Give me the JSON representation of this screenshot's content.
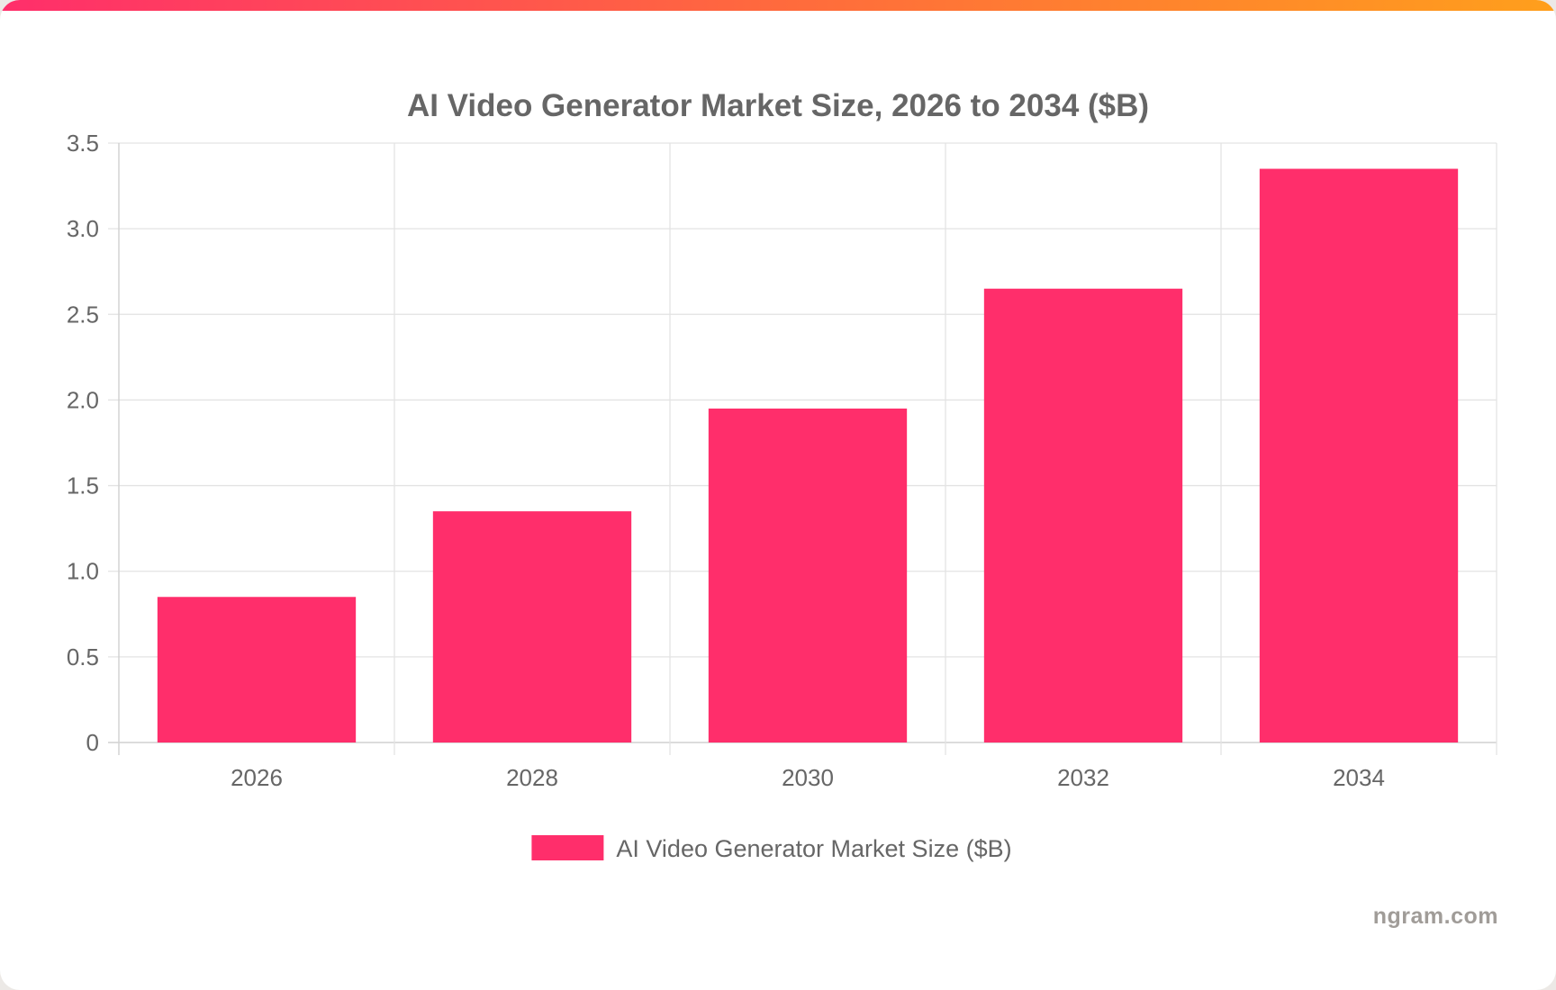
{
  "chart_data": {
    "type": "bar",
    "title": "AI Video Generator Market Size, 2026 to 2034 ($B)",
    "categories": [
      "2026",
      "2028",
      "2030",
      "2032",
      "2034"
    ],
    "series": [
      {
        "name": "AI Video Generator Market Size ($B)",
        "values": [
          0.85,
          1.35,
          1.95,
          2.65,
          3.35
        ],
        "color": "#ff2e6b"
      }
    ],
    "ylim": [
      0,
      3.5
    ],
    "yticks": [
      "0",
      "0.5",
      "1.0",
      "1.5",
      "2.0",
      "2.5",
      "3.0",
      "3.5"
    ],
    "xlabel": "",
    "ylabel": "",
    "grid": true,
    "legend_position": "bottom"
  },
  "branding": {
    "watermark": "ngram.com"
  },
  "colors": {
    "accent_start": "#ff2e6b",
    "accent_end": "#ff9f1c",
    "bar": "#ff2e6b"
  }
}
